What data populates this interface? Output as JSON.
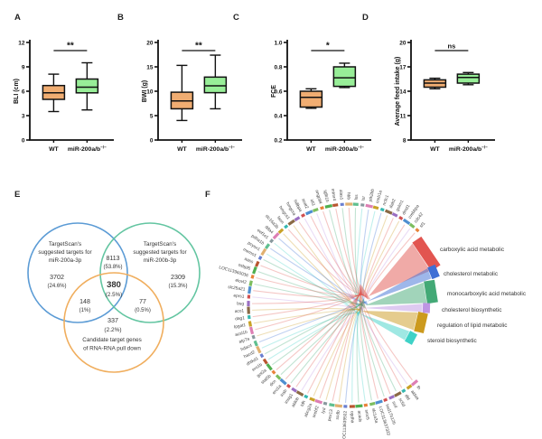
{
  "panel_letters": [
    "A",
    "B",
    "C",
    "D",
    "E",
    "F"
  ],
  "chart_data": [
    {
      "id": "A",
      "type": "box",
      "ylabel": "BLI (cm)",
      "ylim": [
        0,
        12
      ],
      "ytick_labels": [
        "0",
        "3",
        "6",
        "9",
        "12"
      ],
      "significance": "**",
      "groups": [
        {
          "label": "WT",
          "fill": "#F0AD72",
          "whisker_low": 3.5,
          "q1": 5.0,
          "median": 5.8,
          "q3": 6.7,
          "whisker_high": 8.1
        },
        {
          "label": "miR-200a/b",
          "label_sup": "−/−",
          "fill": "#98EE98",
          "whisker_low": 3.7,
          "q1": 5.8,
          "median": 6.5,
          "q3": 7.5,
          "whisker_high": 9.5
        }
      ]
    },
    {
      "id": "B",
      "type": "box",
      "ylabel": "BWI (g)",
      "ylim": [
        0,
        20
      ],
      "ytick_labels": [
        "0",
        "5",
        "10",
        "15",
        "20"
      ],
      "significance": "**",
      "groups": [
        {
          "label": "WT",
          "fill": "#F0AD72",
          "whisker_low": 4.0,
          "q1": 6.4,
          "median": 8.0,
          "q3": 9.8,
          "whisker_high": 15.3
        },
        {
          "label": "miR-200a/b",
          "label_sup": "−/−",
          "fill": "#98EE98",
          "whisker_low": 6.4,
          "q1": 9.7,
          "median": 11.1,
          "q3": 12.9,
          "whisker_high": 17.4
        }
      ]
    },
    {
      "id": "C",
      "type": "box",
      "ylabel": "FCE",
      "ylim": [
        0.2,
        1.0
      ],
      "ytick_labels": [
        "0.2",
        "0.4",
        "0.6",
        "0.8",
        "1.0"
      ],
      "significance": "*",
      "groups": [
        {
          "label": "WT",
          "fill": "#F0AD72",
          "whisker_low": 0.46,
          "q1": 0.47,
          "median": 0.55,
          "q3": 0.6,
          "whisker_high": 0.62
        },
        {
          "label": "miR-200a/b",
          "label_sup": "−/−",
          "fill": "#98EE98",
          "whisker_low": 0.63,
          "q1": 0.64,
          "median": 0.71,
          "q3": 0.8,
          "whisker_high": 0.83
        }
      ]
    },
    {
      "id": "D",
      "type": "box",
      "ylabel": "Average feed intake (g)",
      "ylim": [
        8,
        20
      ],
      "ytick_labels": [
        "8",
        "11",
        "14",
        "17",
        "20"
      ],
      "significance": "ns",
      "groups": [
        {
          "label": "WT",
          "fill": "#F0AD72",
          "whisker_low": 14.3,
          "q1": 14.5,
          "median": 15.0,
          "q3": 15.4,
          "whisker_high": 15.6
        },
        {
          "label": "miR-200a/b",
          "label_sup": "−/−",
          "fill": "#98EE98",
          "whisker_low": 14.8,
          "q1": 15.0,
          "median": 15.7,
          "q3": 16.1,
          "whisker_high": 16.3
        }
      ]
    },
    {
      "id": "E",
      "type": "venn",
      "circles": [
        {
          "label_lines": [
            "TargetScan's",
            "suggested targets for",
            "miR-200a-3p"
          ],
          "color": "#5B9BD5"
        },
        {
          "label_lines": [
            "TargetScan's",
            "suggested targets for",
            "miR-200b-3p"
          ],
          "color": "#63C5A1"
        },
        {
          "label_lines": [
            "Candidate target genes",
            "of RNA-RNA pull down"
          ],
          "color": "#F0AE5E"
        }
      ],
      "counts": {
        "a": "3702",
        "a_pct": "(24.6%)",
        "b": "2309",
        "b_pct": "(15.3%)",
        "c": "337",
        "c_pct": "(2.2%)",
        "ab": "8113",
        "ab_pct": "(53.8%)",
        "ac": "148",
        "ac_pct": "(1%)",
        "bc": "77",
        "bc_pct": "(0.5%)",
        "abc": "380",
        "abc_pct": "(2.5%)"
      }
    },
    {
      "id": "F",
      "type": "chord",
      "genes": [
        "sf1",
        "cdc42",
        "crebbpa",
        "dmd1",
        "golm1",
        "dab2",
        "nr3c1",
        "creb1a",
        "ptk2bb",
        "lsr",
        "lss",
        "hbb",
        "alas1",
        "mtmr4",
        "tgfb1b",
        "angptl4",
        "idi1",
        "soat2",
        "hdlbpa",
        "hmgcra",
        "hmgcs1",
        "fasn",
        "slc16a3b",
        "dda4",
        "eef1e1",
        "pdha1b",
        "pcyox1",
        "memo1",
        "aass",
        "osbpl5",
        "LOC113960036",
        "elovl2",
        "slc25a21",
        "eprs1",
        "bsg",
        "aco1",
        "dag1",
        "lpgat1",
        "acsl1b",
        "atp7a",
        "hdac4",
        "hacd2",
        "dhtkd1",
        "ero1b",
        "got2a",
        "stat5b",
        "dcn",
        "ero1a",
        "insb",
        "insig1",
        "aldob",
        "tdh",
        "abcg2a",
        "srebf2",
        "lyd",
        "pex13",
        "scdb",
        "LOC113639502",
        "ogdha",
        "acads",
        "smc5",
        "slc1a3a",
        "LOC113637322",
        "hsd17b12b",
        "scd",
        "sc5d",
        "dld",
        "aldoa",
        "fh"
      ],
      "categories": [
        {
          "name": "carboxylic acid metabolic",
          "color": "#E25550"
        },
        {
          "name": "cholesterol metabolic",
          "color": "#3E6FD5"
        },
        {
          "name": "monocarboxylic acid metabolic",
          "color": "#43A976"
        },
        {
          "name": "cholesterol biosynthetic",
          "color": "#BE95E3"
        },
        {
          "name": "regulation of lipid metabolic",
          "color": "#CC9A1E"
        },
        {
          "name": "steroid biosynthetic",
          "color": "#3FD2C7"
        }
      ],
      "gene_tick_palette": [
        "#E8833A",
        "#7CBE5F",
        "#4E8FD0",
        "#D05050",
        "#9A6FC2",
        "#8A6A45",
        "#35B8B0",
        "#C9A227",
        "#DD7FB4",
        "#88999E",
        "#5FBF8F",
        "#E0B070",
        "#6A7FD0",
        "#B8562F",
        "#4FAF4F"
      ]
    }
  ]
}
